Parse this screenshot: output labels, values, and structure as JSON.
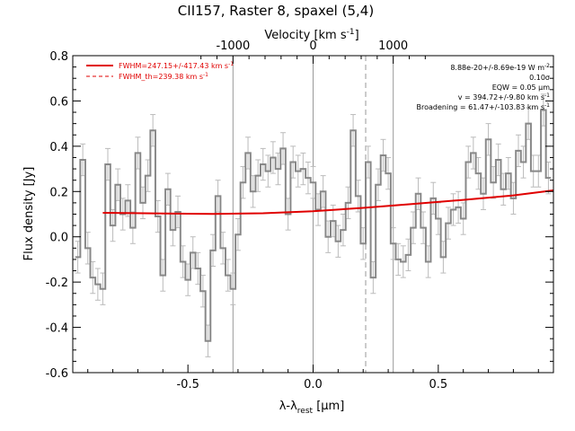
{
  "chart_data": {
    "type": "line",
    "title": "CII157, Raster 8, spaxel (5,4)",
    "xlabel": "λ-λ",
    "xlabel_sub": "rest",
    "xlabel_unit": " [μm]",
    "ylabel": "Flux density [Jy]",
    "top_axis_label": "Velocity [km s",
    "top_axis_label_exp": "-1",
    "top_axis_label_end": "]",
    "xlim": [
      -0.96,
      0.96
    ],
    "ylim": [
      -0.6,
      0.8
    ],
    "x_ticks": [
      -0.5,
      0.0,
      0.5
    ],
    "x_tick_labels": [
      "-0.5",
      "0.0",
      "0.5"
    ],
    "y_ticks": [
      -0.6,
      -0.4,
      -0.2,
      0.0,
      0.2,
      0.4,
      0.6,
      0.8
    ],
    "y_tick_labels": [
      "-0.6",
      "-0.4",
      "-0.2",
      "0.0",
      "0.2",
      "0.4",
      "0.6",
      "0.8"
    ],
    "top_ticks_km_s": [
      -1000,
      0,
      1000
    ],
    "top_tick_labels": [
      "-1000",
      "0",
      "1000"
    ],
    "vertical_lines_solid": [
      -0.32,
      0.0,
      0.32
    ],
    "vertical_lines_dashed": [
      0.21
    ],
    "spectrum": {
      "x": [
        -0.94,
        -0.92,
        -0.9,
        -0.88,
        -0.86,
        -0.84,
        -0.82,
        -0.8,
        -0.78,
        -0.76,
        -0.74,
        -0.72,
        -0.7,
        -0.68,
        -0.66,
        -0.64,
        -0.62,
        -0.6,
        -0.58,
        -0.56,
        -0.54,
        -0.52,
        -0.5,
        -0.48,
        -0.46,
        -0.44,
        -0.42,
        -0.4,
        -0.38,
        -0.36,
        -0.34,
        -0.32,
        -0.3,
        -0.28,
        -0.26,
        -0.24,
        -0.22,
        -0.2,
        -0.18,
        -0.16,
        -0.14,
        -0.12,
        -0.1,
        -0.08,
        -0.06,
        -0.04,
        -0.02,
        0.0,
        0.02,
        0.04,
        0.06,
        0.08,
        0.1,
        0.12,
        0.14,
        0.16,
        0.18,
        0.2,
        0.22,
        0.24,
        0.26,
        0.28,
        0.3,
        0.32,
        0.34,
        0.36,
        0.38,
        0.4,
        0.42,
        0.44,
        0.46,
        0.48,
        0.5,
        0.52,
        0.54,
        0.56,
        0.58,
        0.6,
        0.62,
        0.64,
        0.66,
        0.68,
        0.7,
        0.72,
        0.74,
        0.76,
        0.78,
        0.8,
        0.82,
        0.84,
        0.86,
        0.88,
        0.9,
        0.92,
        0.94
      ],
      "y": [
        -0.09,
        0.34,
        -0.05,
        -0.18,
        -0.21,
        -0.23,
        0.32,
        0.05,
        0.23,
        0.1,
        0.16,
        0.04,
        0.37,
        0.15,
        0.27,
        0.47,
        0.09,
        -0.17,
        0.21,
        0.03,
        0.11,
        -0.11,
        -0.19,
        -0.07,
        -0.14,
        -0.24,
        -0.46,
        -0.06,
        0.18,
        -0.05,
        -0.17,
        -0.23,
        0.01,
        0.24,
        0.37,
        0.2,
        0.27,
        0.32,
        0.29,
        0.35,
        0.3,
        0.39,
        0.1,
        0.33,
        0.29,
        0.3,
        0.26,
        0.24,
        0.12,
        0.2,
        0.0,
        0.07,
        -0.02,
        0.03,
        0.15,
        0.47,
        0.18,
        -0.03,
        0.33,
        -0.18,
        0.23,
        0.36,
        0.28,
        -0.03,
        -0.1,
        -0.11,
        -0.08,
        0.04,
        0.19,
        0.04,
        -0.11,
        0.17,
        0.08,
        -0.09,
        0.06,
        0.12,
        0.13,
        0.08,
        0.33,
        0.37,
        0.28,
        0.19,
        0.43,
        0.24,
        0.34,
        0.21,
        0.28,
        0.17,
        0.38,
        0.33,
        0.5,
        0.29,
        0.29,
        0.56,
        0.26
      ],
      "error": [
        0.07,
        0.07,
        0.07,
        0.07,
        0.07,
        0.07,
        0.07,
        0.07,
        0.07,
        0.07,
        0.07,
        0.07,
        0.07,
        0.07,
        0.07,
        0.07,
        0.07,
        0.07,
        0.07,
        0.07,
        0.07,
        0.07,
        0.07,
        0.07,
        0.07,
        0.07,
        0.07,
        0.07,
        0.07,
        0.07,
        0.07,
        0.07,
        0.07,
        0.07,
        0.07,
        0.07,
        0.07,
        0.07,
        0.07,
        0.07,
        0.07,
        0.07,
        0.07,
        0.07,
        0.07,
        0.07,
        0.07,
        0.07,
        0.07,
        0.07,
        0.07,
        0.07,
        0.07,
        0.07,
        0.07,
        0.07,
        0.07,
        0.07,
        0.07,
        0.07,
        0.07,
        0.07,
        0.07,
        0.07,
        0.07,
        0.07,
        0.07,
        0.07,
        0.07,
        0.07,
        0.07,
        0.07,
        0.07,
        0.07,
        0.07,
        0.07,
        0.07,
        0.07,
        0.07,
        0.07,
        0.07,
        0.07,
        0.07,
        0.07,
        0.07,
        0.07,
        0.07,
        0.07,
        0.07,
        0.07,
        0.07,
        0.07,
        0.07,
        0.07,
        0.07
      ]
    },
    "fit": {
      "x": [
        -0.84,
        -0.6,
        -0.4,
        -0.2,
        0.0,
        0.2,
        0.4,
        0.6,
        0.8,
        0.96
      ],
      "y": [
        0.106,
        0.103,
        0.101,
        0.104,
        0.113,
        0.128,
        0.145,
        0.163,
        0.183,
        0.205
      ]
    },
    "colors": {
      "spectrum": "#888888",
      "errorbars": "#bbbbbb",
      "fit": "#e00000",
      "lines": "#999999"
    },
    "legend": [
      {
        "label": "FWHM=247.15+/-417.43 km s",
        "exp": "-1",
        "style": "solid"
      },
      {
        "label": "FWHM_th=239.38 km s",
        "exp": "-1",
        "style": "dashed"
      }
    ],
    "annotations": [
      {
        "text": "8.88e-20+/-8.69e-19 W m",
        "exp": "-2"
      },
      {
        "text": "0.10σ",
        "exp": ""
      },
      {
        "text": "EQW = 0.05 μm",
        "exp": ""
      },
      {
        "text": "v = 394.72+/-9.80 km s",
        "exp": "-1"
      },
      {
        "text": "Broadening = 61.47+/-103.83 km s",
        "exp": "-1"
      }
    ]
  }
}
